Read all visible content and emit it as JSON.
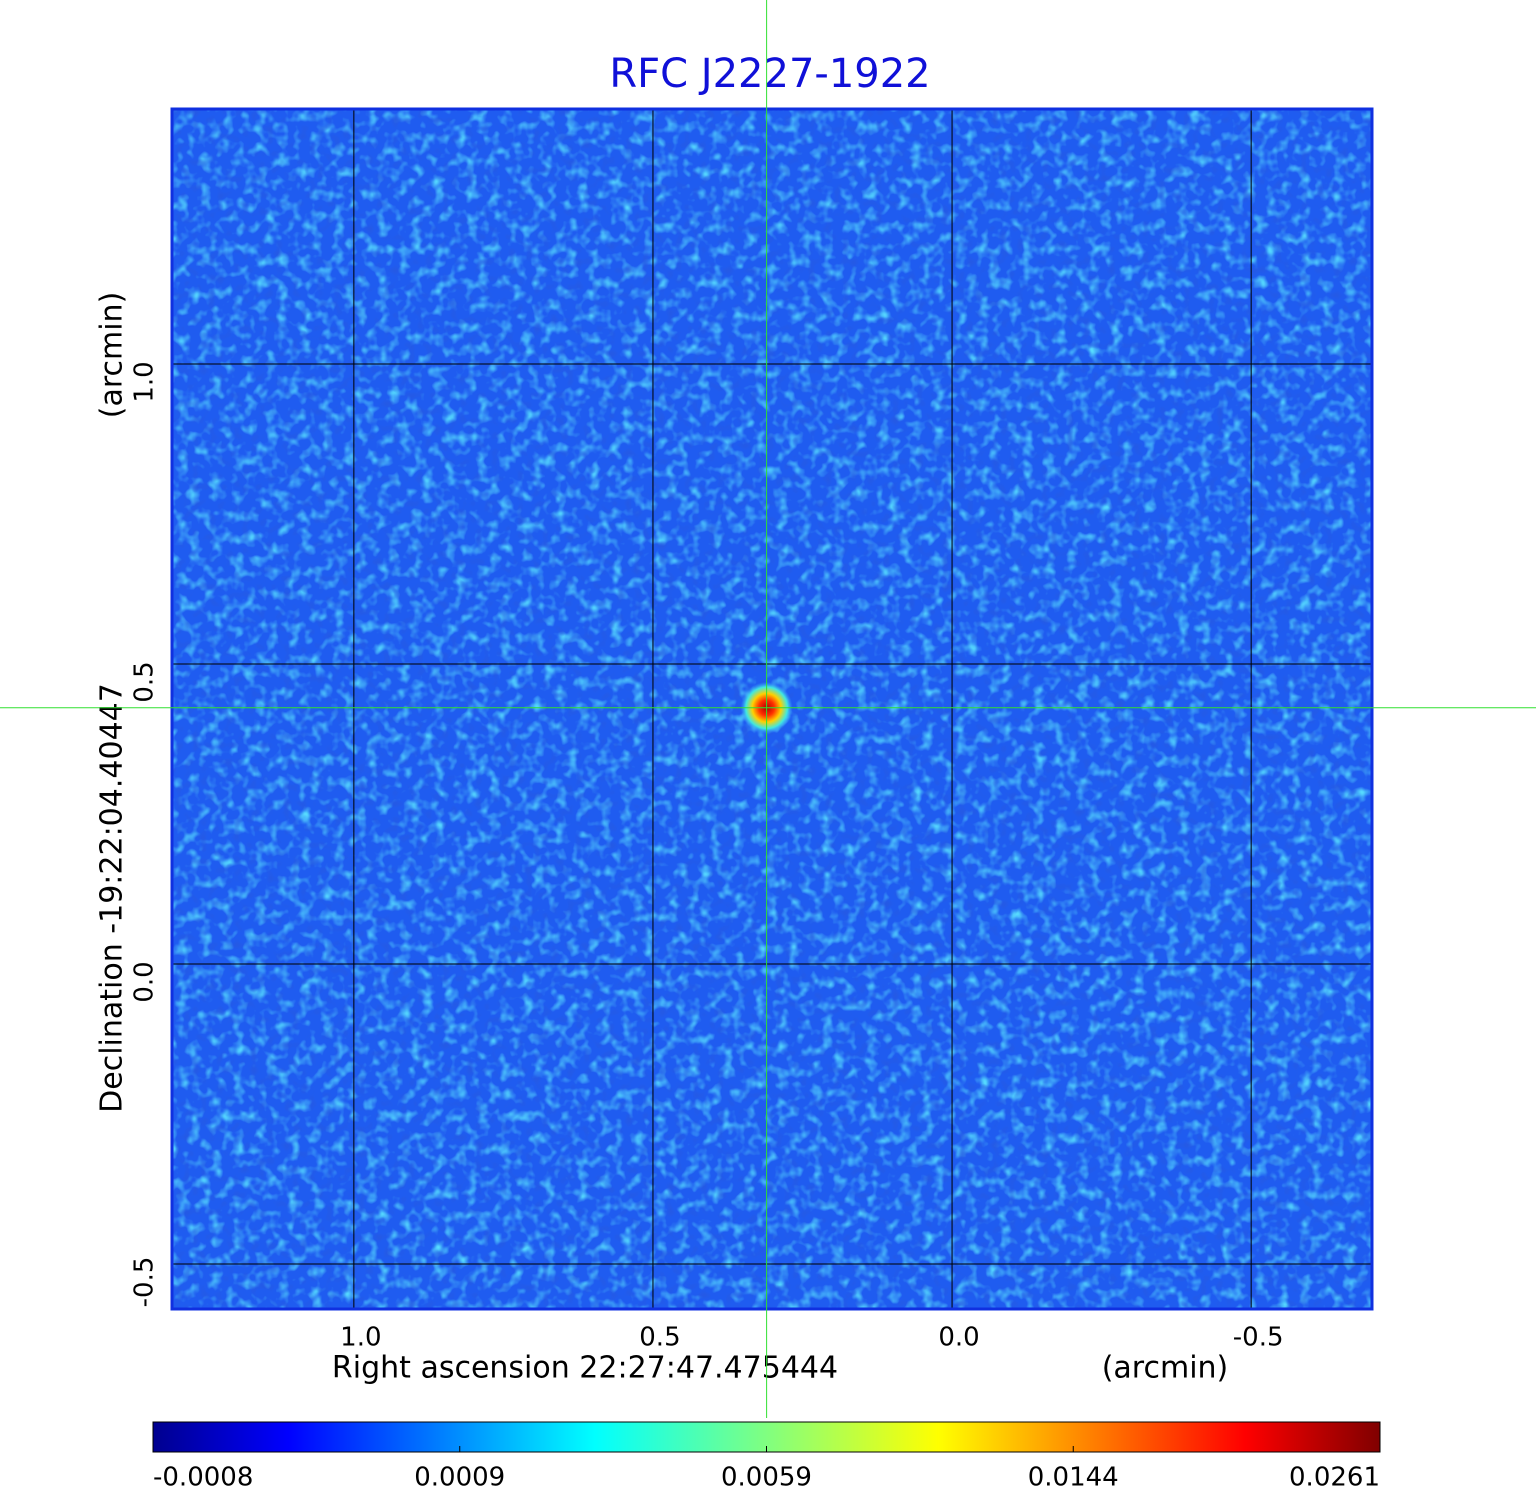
{
  "chart_data": {
    "type": "image",
    "title": "RFC J2227-1922",
    "xlabel": "Right ascension  22:27:47.475444",
    "xunit": "(arcmin)",
    "ylabel": "Declination  -19:22:04.40447",
    "yunit": "(arcmin)",
    "xlim": [
      1.304,
      -0.702
    ],
    "ylim": [
      -0.575,
      1.425
    ],
    "xticks": [
      {
        "value": 1,
        "label": "1.0"
      },
      0.5,
      {
        "value": 0,
        "label": "0.0"
      },
      -0.5
    ],
    "yticks": [
      -0.5,
      {
        "value": 0,
        "label": "0.0"
      },
      0.5,
      {
        "value": 1,
        "label": "1.0"
      }
    ],
    "grid": true,
    "source": {
      "x": 0.31,
      "y": 0.427
    },
    "colorbar": {
      "ticks": [
        -0.0008,
        0.0009,
        0.0059,
        0.0144,
        0.0261
      ]
    }
  }
}
